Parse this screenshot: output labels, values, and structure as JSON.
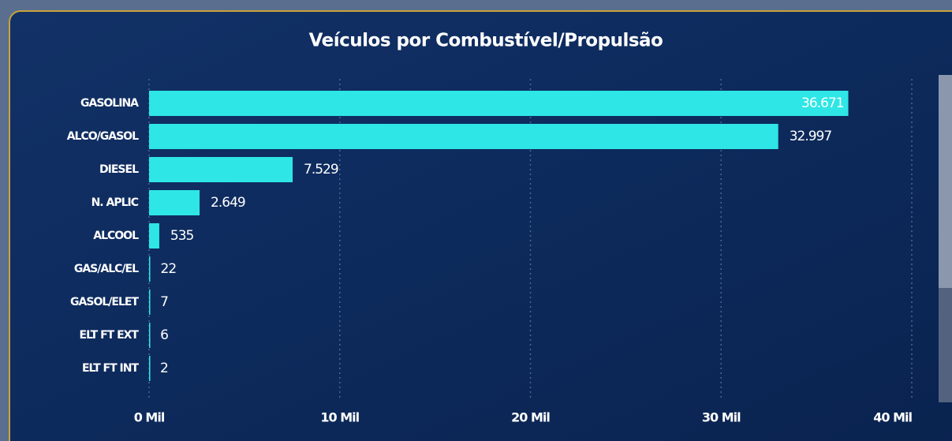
{
  "chart_data": {
    "type": "bar",
    "orientation": "horizontal",
    "title": "Veículos por Combustível/Propulsão",
    "categories": [
      "GASOLINA",
      "ALCO/GASOL",
      "DIESEL",
      "N. APLIC",
      "ALCOOL",
      "GAS/ALC/EL",
      "GASOL/ELET",
      "ELT FT EXT",
      "ELT FT INT"
    ],
    "values": [
      36671,
      32997,
      7529,
      2649,
      535,
      22,
      7,
      6,
      2
    ],
    "value_labels": [
      "36.671",
      "32.997",
      "7.529",
      "2.649",
      "535",
      "22",
      "7",
      "6",
      "2"
    ],
    "color": "#2ee6e6",
    "xlim": [
      0,
      40000
    ],
    "xticks": [
      {
        "value": 0,
        "label": "0 Mil"
      },
      {
        "value": 10000,
        "label": "10 Mil"
      },
      {
        "value": 20000,
        "label": "20 Mil"
      },
      {
        "value": 30000,
        "label": "30 Mil"
      },
      {
        "value": 40000,
        "label": "40 Mil"
      }
    ],
    "grid": true
  }
}
